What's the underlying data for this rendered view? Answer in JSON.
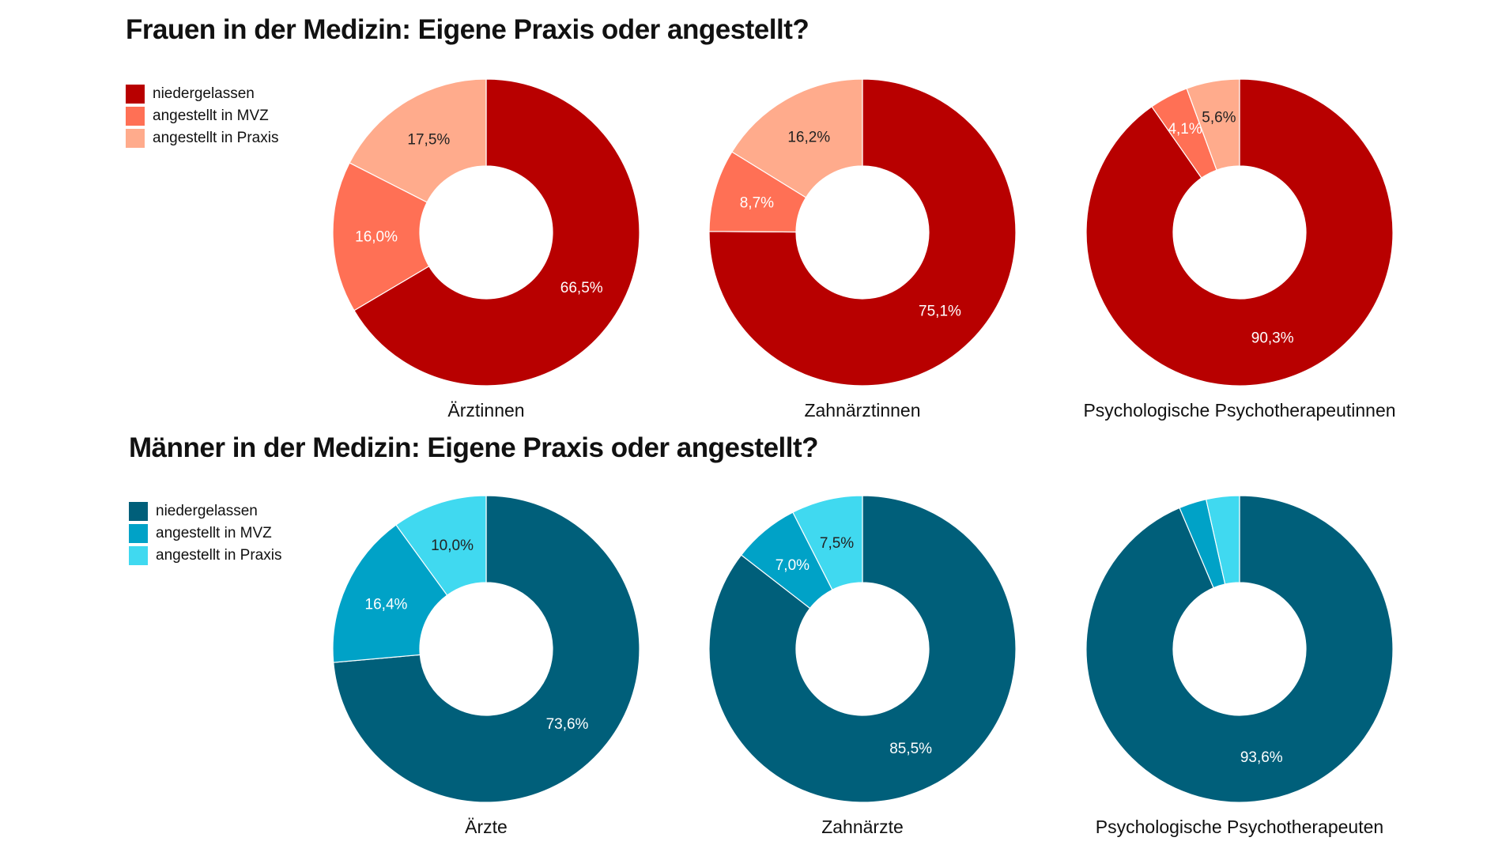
{
  "chart_data": [
    {
      "type": "pie",
      "title": "Frauen in der Medizin: Eigene Praxis oder angestellt?",
      "legend": [
        "niedergelassen",
        "angestellt in MVZ",
        "angestellt in Praxis"
      ],
      "legend_placement": "top-left",
      "colors": [
        "#b80000",
        "#ff7055",
        "#ffab8c"
      ],
      "label_colors": [
        "#ffffff",
        "#ffffff",
        "#222222"
      ],
      "charts": [
        {
          "label": "Ärztinnen",
          "values": [
            66.5,
            16.0,
            17.5
          ],
          "value_labels": [
            "66,5%",
            "16,0%",
            "17,5%"
          ]
        },
        {
          "label": "Zahnärztinnen",
          "values": [
            75.1,
            8.7,
            16.2
          ],
          "value_labels": [
            "75,1%",
            "8,7%",
            "16,2%"
          ]
        },
        {
          "label": "Psychologische Psychotherapeutinnen",
          "values": [
            90.3,
            4.1,
            5.6
          ],
          "value_labels": [
            "90,3%",
            "4,1%",
            "5,6%"
          ]
        }
      ]
    },
    {
      "type": "pie",
      "title": "Männer in der Medizin: Eigene Praxis oder angestellt?",
      "legend": [
        "niedergelassen",
        "angestellt in MVZ",
        "angestellt in Praxis"
      ],
      "legend_placement": "top-left",
      "colors": [
        "#005f7a",
        "#00a2c7",
        "#40d9f0"
      ],
      "label_colors": [
        "#ffffff",
        "#ffffff",
        "#222222"
      ],
      "charts": [
        {
          "label": "Ärzte",
          "values": [
            73.6,
            16.4,
            10.0
          ],
          "value_labels": [
            "73,6%",
            "16,4%",
            "10,0%"
          ]
        },
        {
          "label": "Zahnärzte",
          "values": [
            85.5,
            7.0,
            7.5
          ],
          "value_labels": [
            "85,5%",
            "7,0%",
            "7,5%"
          ]
        },
        {
          "label": "Psychologische Psychotherapeuten",
          "values": [
            93.6,
            2.9,
            3.5
          ],
          "value_labels": [
            "93,6%",
            "",
            ""
          ]
        }
      ]
    }
  ]
}
